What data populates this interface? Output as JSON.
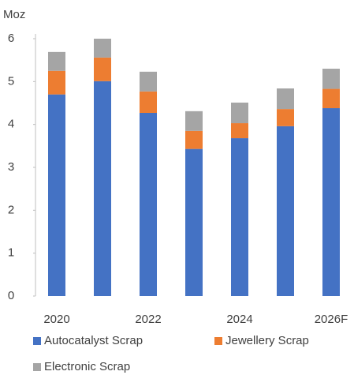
{
  "chart_data": {
    "type": "stacked_bar",
    "y_label": "Moz",
    "categories": [
      "2020",
      null,
      "2022",
      null,
      "2024",
      null,
      "2026F"
    ],
    "series": [
      {
        "name": "Autocatalyst Scrap",
        "color": "#4472c4",
        "values": [
          4.7,
          5.01,
          4.27,
          3.43,
          3.68,
          3.96,
          4.38
        ]
      },
      {
        "name": "Jewellery Scrap",
        "color": "#ed7d31",
        "values": [
          0.55,
          0.55,
          0.5,
          0.42,
          0.35,
          0.4,
          0.45
        ]
      },
      {
        "name": "Electronic Scrap",
        "color": "#a5a5a5",
        "values": [
          0.44,
          0.44,
          0.46,
          0.46,
          0.48,
          0.48,
          0.47
        ]
      }
    ],
    "ylim": [
      0,
      6
    ],
    "yticks": [
      0,
      1,
      2,
      3,
      4,
      5,
      6
    ]
  }
}
